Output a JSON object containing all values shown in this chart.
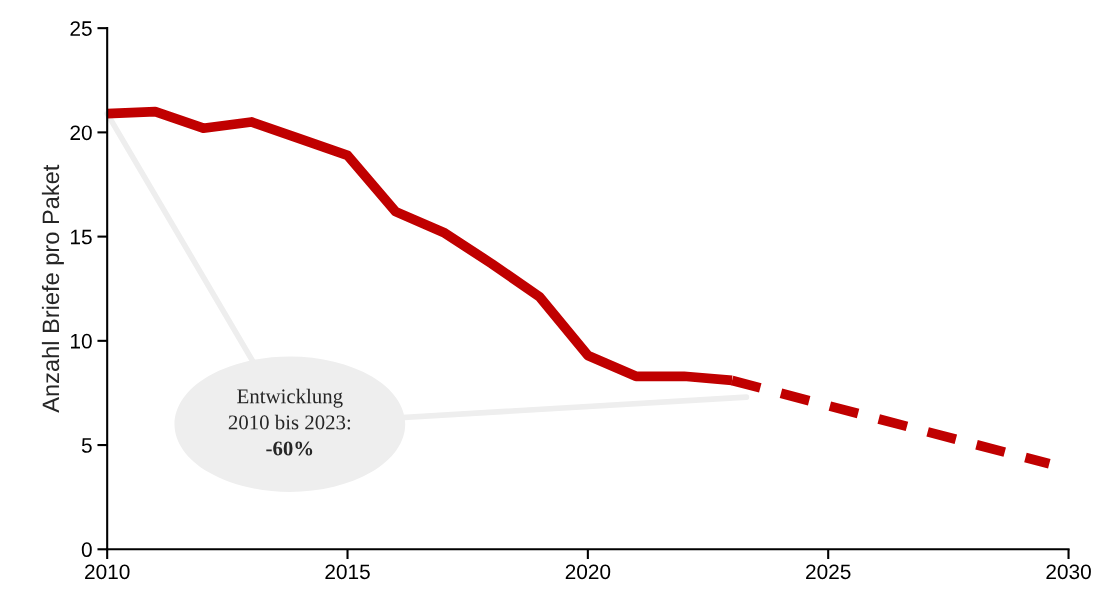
{
  "chart_data": {
    "type": "line",
    "ylabel": "Anzahl Briefe pro Paket",
    "series": [
      {
        "color": "#c00000",
        "line_style": "solid",
        "x": [
          2010,
          2011,
          2012,
          2013,
          2014,
          2015,
          2016,
          2017,
          2018,
          2019,
          2020,
          2021,
          2022,
          2023
        ],
        "values": [
          20.9,
          21.0,
          20.2,
          20.5,
          19.7,
          18.9,
          16.2,
          15.2,
          13.7,
          12.1,
          9.3,
          8.3,
          8.3,
          8.1
        ]
      },
      {
        "color": "#c00000",
        "line_style": "dashed",
        "x": [
          2023,
          2029.6
        ],
        "values": [
          8.1,
          4.1
        ]
      }
    ],
    "xlim": [
      2010,
      2030
    ],
    "xticks": [
      2010,
      2015,
      2020,
      2025,
      2030
    ],
    "ylim": [
      0,
      25
    ],
    "yticks": [
      0,
      5,
      10,
      15,
      20,
      25
    ],
    "grid": false,
    "legend": false,
    "marker": "none",
    "annotations": [
      {
        "text": "Entwicklung\n2010 bis 2023:\n-60%",
        "x": 2010,
        "y": 20.9
      }
    ]
  }
}
